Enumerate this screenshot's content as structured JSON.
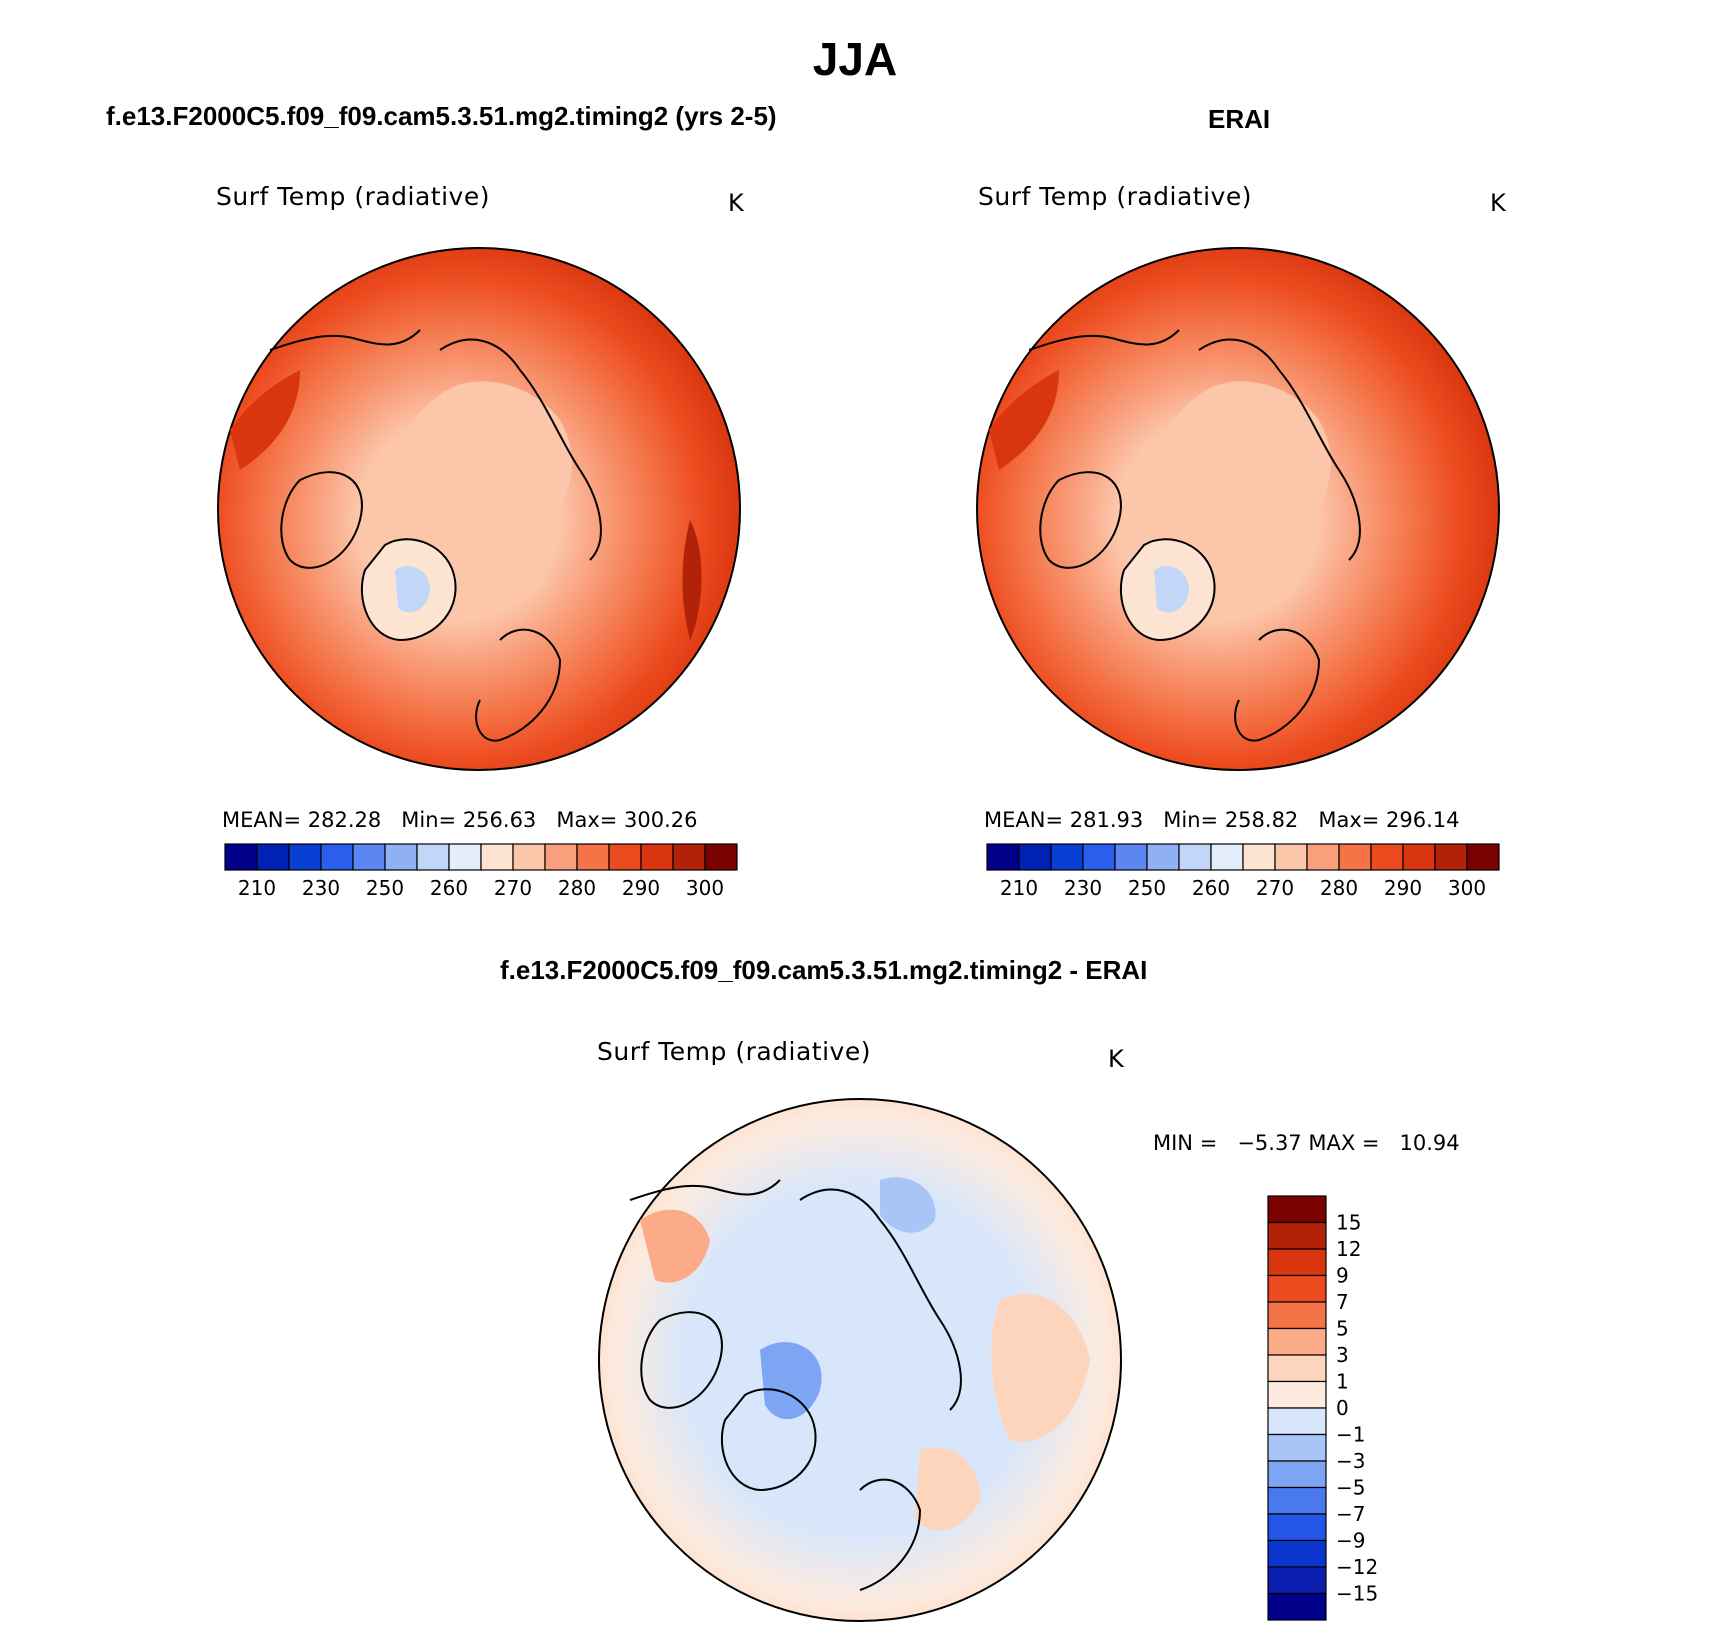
{
  "title": "JJA",
  "panels": [
    {
      "title": "f.e13.F2000C5.f09_f09.cam5.3.51.mg2.timing2 (yrs 2-5)",
      "field_label": "Surf Temp (radiative)",
      "units": "K",
      "stats": {
        "mean_label": "MEAN=",
        "mean": "282.28",
        "min_label": "Min=",
        "min": "256.63",
        "max_label": "Max=",
        "max": "300.26"
      }
    },
    {
      "title": "ERAI",
      "field_label": "Surf Temp (radiative)",
      "units": "K",
      "stats": {
        "mean_label": "MEAN=",
        "mean": "281.93",
        "min_label": "Min=",
        "min": "258.82",
        "max_label": "Max=",
        "max": "296.14"
      }
    },
    {
      "title": "f.e13.F2000C5.f09_f09.cam5.3.51.mg2.timing2 - ERAI",
      "field_label": "Surf Temp (radiative)",
      "units": "K",
      "stats_text": "MIN =   −5.37 MAX =   10.94"
    }
  ],
  "abs_colorbar": {
    "colors": [
      "#00008b",
      "#0022b4",
      "#0a3fd6",
      "#2a5fee",
      "#5c87f2",
      "#8fb0f5",
      "#c2d6f7",
      "#e4eefb",
      "#fde4d2",
      "#fcc6ab",
      "#f99f7c",
      "#f47448",
      "#ec4b1f",
      "#d9350e",
      "#b22209",
      "#7b0000"
    ],
    "ticks": [
      "210",
      "230",
      "250",
      "260",
      "270",
      "280",
      "290",
      "300"
    ]
  },
  "diff_colorbar": {
    "colors": [
      "#7b0000",
      "#b22209",
      "#d9350e",
      "#ec4b1f",
      "#f47448",
      "#fcab88",
      "#fdd5bd",
      "#fdebdf",
      "#d7e6fb",
      "#a9c4f7",
      "#7ea5f4",
      "#4a78ef",
      "#2455e8",
      "#0a35cf",
      "#0a1fb0",
      "#00008b"
    ],
    "ticks": [
      "15",
      "12",
      "9",
      "7",
      "5",
      "3",
      "1",
      "0",
      "−1",
      "−3",
      "−5",
      "−7",
      "−9",
      "−12",
      "−15"
    ]
  }
}
